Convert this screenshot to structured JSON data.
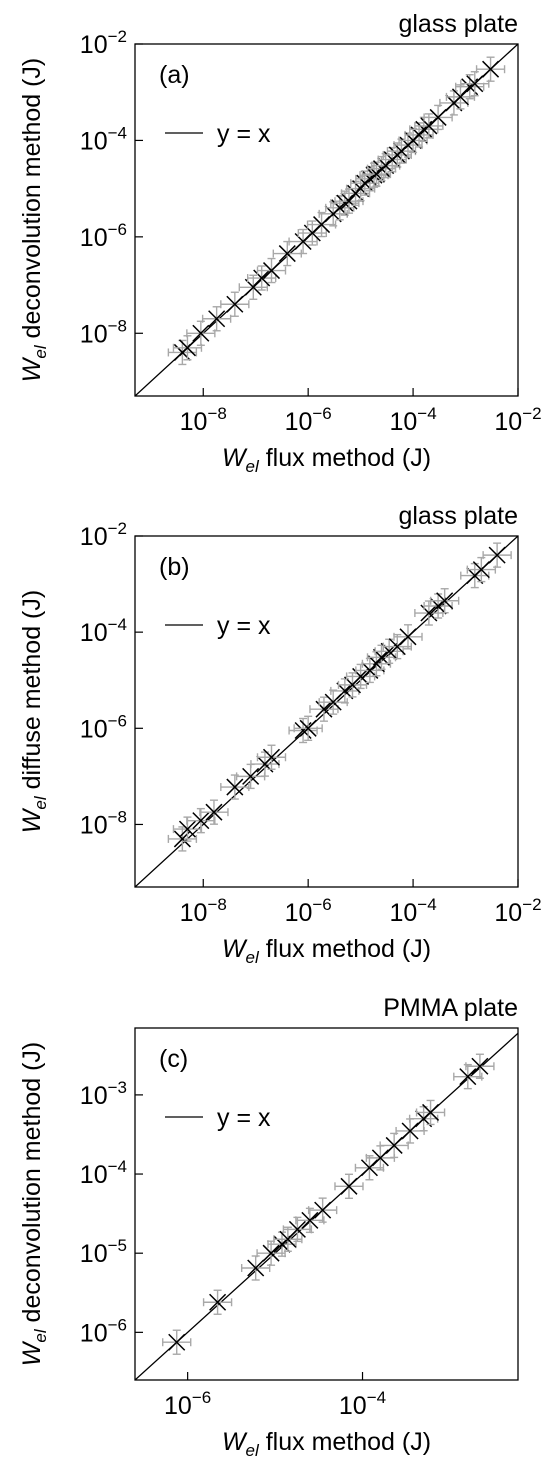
{
  "chart_data": [
    {
      "type": "scatter",
      "panel": "(a)",
      "corner_title": "glass plate",
      "xlabel": {
        "symbol": "W",
        "sub": "el",
        "text": " flux method (J)"
      },
      "ylabel": {
        "symbol": "W",
        "sub": "el",
        "text": " deconvolution method (J)"
      },
      "scale": "log",
      "xlim": [
        5e-10,
        0.01
      ],
      "ylim": [
        5e-10,
        0.01
      ],
      "xticks": [
        {
          "exp": "-8",
          "v": 1e-08
        },
        {
          "exp": "-6",
          "v": 1e-06
        },
        {
          "exp": "-4",
          "v": 0.0001
        },
        {
          "exp": "-2",
          "v": 0.01
        }
      ],
      "yticks": [
        {
          "exp": "-8",
          "v": 1e-08
        },
        {
          "exp": "-6",
          "v": 1e-06
        },
        {
          "exp": "-4",
          "v": 0.0001
        },
        {
          "exp": "-2",
          "v": 0.01
        }
      ],
      "legend": {
        "label": "y = x",
        "position": "top-left"
      },
      "reference_line": "y = x",
      "points": [
        {
          "x": 4e-09,
          "y": 4e-09
        },
        {
          "x": 5e-09,
          "y": 5e-09
        },
        {
          "x": 9e-09,
          "y": 1e-08
        },
        {
          "x": 1.8e-08,
          "y": 2e-08
        },
        {
          "x": 4e-08,
          "y": 4e-08
        },
        {
          "x": 9e-08,
          "y": 9e-08
        },
        {
          "x": 1.3e-07,
          "y": 1.4e-07
        },
        {
          "x": 2e-07,
          "y": 2e-07
        },
        {
          "x": 4e-07,
          "y": 4.5e-07
        },
        {
          "x": 8e-07,
          "y": 8e-07
        },
        {
          "x": 1.2e-06,
          "y": 1.2e-06
        },
        {
          "x": 1.8e-06,
          "y": 1.8e-06
        },
        {
          "x": 3e-06,
          "y": 3e-06
        },
        {
          "x": 4e-06,
          "y": 4e-06
        },
        {
          "x": 5e-06,
          "y": 5e-06
        },
        {
          "x": 6e-06,
          "y": 5.5e-06
        },
        {
          "x": 8e-06,
          "y": 8e-06
        },
        {
          "x": 1e-05,
          "y": 1e-05
        },
        {
          "x": 1.2e-05,
          "y": 1.3e-05
        },
        {
          "x": 1.5e-05,
          "y": 1.6e-05
        },
        {
          "x": 1.8e-05,
          "y": 1.9e-05
        },
        {
          "x": 2e-05,
          "y": 2e-05
        },
        {
          "x": 2.5e-05,
          "y": 2.6e-05
        },
        {
          "x": 3e-05,
          "y": 3e-05
        },
        {
          "x": 4e-05,
          "y": 4e-05
        },
        {
          "x": 5e-05,
          "y": 5e-05
        },
        {
          "x": 6e-05,
          "y": 6e-05
        },
        {
          "x": 8e-05,
          "y": 8e-05
        },
        {
          "x": 0.0001,
          "y": 0.0001
        },
        {
          "x": 0.00013,
          "y": 0.00013
        },
        {
          "x": 0.00016,
          "y": 0.00017
        },
        {
          "x": 0.0002,
          "y": 0.0002
        },
        {
          "x": 0.0003,
          "y": 0.0003
        },
        {
          "x": 0.0006,
          "y": 0.0006
        },
        {
          "x": 0.0008,
          "y": 0.0008
        },
        {
          "x": 0.0012,
          "y": 0.0013
        },
        {
          "x": 0.0015,
          "y": 0.0015
        },
        {
          "x": 0.003,
          "y": 0.003
        }
      ]
    },
    {
      "type": "scatter",
      "panel": "(b)",
      "corner_title": "glass plate",
      "xlabel": {
        "symbol": "W",
        "sub": "el",
        "text": " flux method (J)"
      },
      "ylabel": {
        "symbol": "W",
        "sub": "el",
        "text": " diffuse method (J)"
      },
      "scale": "log",
      "xlim": [
        5e-10,
        0.01
      ],
      "ylim": [
        5e-10,
        0.01
      ],
      "xticks": [
        {
          "exp": "-8",
          "v": 1e-08
        },
        {
          "exp": "-6",
          "v": 1e-06
        },
        {
          "exp": "-4",
          "v": 0.0001
        },
        {
          "exp": "-2",
          "v": 0.01
        }
      ],
      "yticks": [
        {
          "exp": "-8",
          "v": 1e-08
        },
        {
          "exp": "-6",
          "v": 1e-06
        },
        {
          "exp": "-4",
          "v": 0.0001
        },
        {
          "exp": "-2",
          "v": 0.01
        }
      ],
      "legend": {
        "label": "y = x",
        "position": "top-left"
      },
      "reference_line": "y = x",
      "points": [
        {
          "x": 4e-09,
          "y": 5e-09
        },
        {
          "x": 5e-09,
          "y": 8e-09
        },
        {
          "x": 9e-09,
          "y": 1.2e-08
        },
        {
          "x": 1.6e-08,
          "y": 1.8e-08
        },
        {
          "x": 4e-08,
          "y": 6e-08
        },
        {
          "x": 8e-08,
          "y": 1e-07
        },
        {
          "x": 1.5e-07,
          "y": 1.8e-07
        },
        {
          "x": 2e-07,
          "y": 2.5e-07
        },
        {
          "x": 8e-07,
          "y": 9e-07
        },
        {
          "x": 1e-06,
          "y": 1e-06
        },
        {
          "x": 2e-06,
          "y": 2.5e-06
        },
        {
          "x": 3e-06,
          "y": 3.5e-06
        },
        {
          "x": 5e-06,
          "y": 6e-06
        },
        {
          "x": 7e-06,
          "y": 8e-06
        },
        {
          "x": 1e-05,
          "y": 1.2e-05
        },
        {
          "x": 1.5e-05,
          "y": 1.6e-05
        },
        {
          "x": 2e-05,
          "y": 2.2e-05
        },
        {
          "x": 2.5e-05,
          "y": 3e-05
        },
        {
          "x": 3.5e-05,
          "y": 4e-05
        },
        {
          "x": 5e-05,
          "y": 5e-05
        },
        {
          "x": 8e-05,
          "y": 8e-05
        },
        {
          "x": 0.0002,
          "y": 0.00025
        },
        {
          "x": 0.0003,
          "y": 0.00035
        },
        {
          "x": 0.0004,
          "y": 0.00045
        },
        {
          "x": 0.0015,
          "y": 0.0015
        },
        {
          "x": 0.002,
          "y": 0.002
        },
        {
          "x": 0.004,
          "y": 0.004
        }
      ]
    },
    {
      "type": "scatter",
      "panel": "(c)",
      "corner_title": "PMMA plate",
      "xlabel": {
        "symbol": "W",
        "sub": "el",
        "text": " flux method (J)"
      },
      "ylabel": {
        "symbol": "W",
        "sub": "el",
        "text": " deconvolution method (J)"
      },
      "scale": "log",
      "xlim": [
        2.5e-07,
        0.006
      ],
      "ylim": [
        2.5e-07,
        0.007
      ],
      "xticks": [
        {
          "exp": "-6",
          "v": 1e-06
        },
        {
          "exp": "-4",
          "v": 0.0001
        }
      ],
      "yticks": [
        {
          "exp": "-6",
          "v": 1e-06
        },
        {
          "exp": "-5",
          "v": 1e-05
        },
        {
          "exp": "-4",
          "v": 0.0001
        },
        {
          "exp": "-3",
          "v": 0.001
        }
      ],
      "legend": {
        "label": "y = x",
        "position": "top-left"
      },
      "reference_line": "y = x",
      "points": [
        {
          "x": 7.5e-07,
          "y": 7.5e-07
        },
        {
          "x": 2.2e-06,
          "y": 2.4e-06
        },
        {
          "x": 6e-06,
          "y": 6.5e-06
        },
        {
          "x": 9e-06,
          "y": 1e-05
        },
        {
          "x": 1.2e-05,
          "y": 1.3e-05
        },
        {
          "x": 1.4e-05,
          "y": 1.5e-05
        },
        {
          "x": 1.8e-05,
          "y": 2e-05
        },
        {
          "x": 2.5e-05,
          "y": 2.6e-05
        },
        {
          "x": 3.5e-05,
          "y": 3.5e-05
        },
        {
          "x": 7e-05,
          "y": 7e-05
        },
        {
          "x": 0.00012,
          "y": 0.00012
        },
        {
          "x": 0.00016,
          "y": 0.00016
        },
        {
          "x": 0.00023,
          "y": 0.00023
        },
        {
          "x": 0.00035,
          "y": 0.00035
        },
        {
          "x": 0.0005,
          "y": 0.0005
        },
        {
          "x": 0.0006,
          "y": 0.0006
        },
        {
          "x": 0.0016,
          "y": 0.0017
        },
        {
          "x": 0.0022,
          "y": 0.0023
        }
      ]
    }
  ]
}
